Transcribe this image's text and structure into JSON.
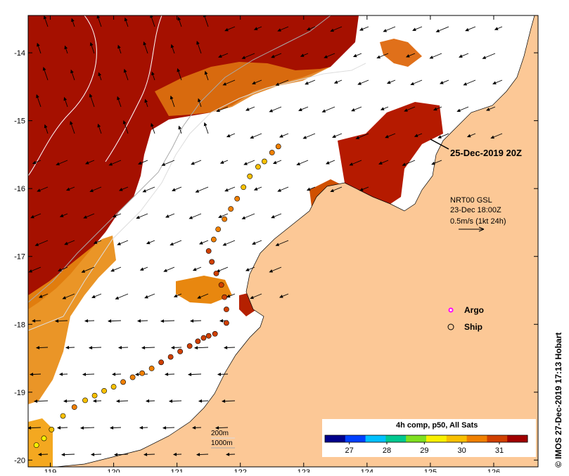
{
  "map": {
    "lon_ticks": [
      "119",
      "120",
      "121",
      "122",
      "123",
      "124",
      "125",
      "126"
    ],
    "lat_ticks": [
      "-14",
      "-15",
      "-16",
      "-17",
      "-18",
      "-19",
      "-20"
    ],
    "lon_range": [
      118.65,
      126.7
    ],
    "lat_range": [
      -13.45,
      -20.1
    ]
  },
  "labels": {
    "date_label": "25-Dec-2019 20Z",
    "current_source": "NRT00 GSL",
    "current_time": "23-Dec 18:00Z",
    "current_scale": "0.5m/s (1kt 24h)",
    "argo_label": "Argo",
    "ship_label": "Ship",
    "depth_200": "200m",
    "depth_1000": "1000m",
    "colorbar_title": "4h comp, p50, All Sats",
    "credit": "© IMOS 27-Dec-2019 17:13 Hobart"
  },
  "colorbar": {
    "ticks": [
      "27",
      "28",
      "29",
      "30",
      "31"
    ],
    "range": [
      26.35,
      31.75
    ],
    "colors": [
      "#00008b",
      "#0040ff",
      "#00c0ff",
      "#00c890",
      "#7fe020",
      "#f8f000",
      "#f8c000",
      "#f08000",
      "#d04000",
      "#a00000"
    ]
  },
  "ship_track": [
    {
      "lon": 118.78,
      "lat": -19.78,
      "sst": 29.5
    },
    {
      "lon": 118.9,
      "lat": -19.68,
      "sst": 29.5
    },
    {
      "lon": 119.02,
      "lat": -19.55,
      "sst": 29.6
    },
    {
      "lon": 119.2,
      "lat": -19.35,
      "sst": 29.9
    },
    {
      "lon": 119.38,
      "lat": -19.22,
      "sst": 30.2
    },
    {
      "lon": 119.55,
      "lat": -19.12,
      "sst": 30.0
    },
    {
      "lon": 119.7,
      "lat": -19.05,
      "sst": 29.9
    },
    {
      "lon": 119.85,
      "lat": -18.98,
      "sst": 30.0
    },
    {
      "lon": 120.0,
      "lat": -18.92,
      "sst": 30.0
    },
    {
      "lon": 120.15,
      "lat": -18.85,
      "sst": 30.2
    },
    {
      "lon": 120.3,
      "lat": -18.78,
      "sst": 30.3
    },
    {
      "lon": 120.45,
      "lat": -18.72,
      "sst": 30.5
    },
    {
      "lon": 120.6,
      "lat": -18.65,
      "sst": 30.6
    },
    {
      "lon": 120.75,
      "lat": -18.56,
      "sst": 30.8
    },
    {
      "lon": 120.9,
      "lat": -18.48,
      "sst": 30.9
    },
    {
      "lon": 121.05,
      "lat": -18.4,
      "sst": 31.0
    },
    {
      "lon": 121.2,
      "lat": -18.32,
      "sst": 31.0
    },
    {
      "lon": 121.33,
      "lat": -18.25,
      "sst": 31.1
    },
    {
      "lon": 121.42,
      "lat": -18.2,
      "sst": 31.1
    },
    {
      "lon": 121.5,
      "lat": -18.17,
      "sst": 31.1
    },
    {
      "lon": 121.6,
      "lat": -18.14,
      "sst": 31.0
    },
    {
      "lon": 121.78,
      "lat": -17.98,
      "sst": 31.0
    },
    {
      "lon": 121.78,
      "lat": -17.78,
      "sst": 31.0
    },
    {
      "lon": 121.75,
      "lat": -17.6,
      "sst": 31.0
    },
    {
      "lon": 121.7,
      "lat": -17.42,
      "sst": 31.0
    },
    {
      "lon": 121.62,
      "lat": -17.25,
      "sst": 30.8
    },
    {
      "lon": 121.55,
      "lat": -17.08,
      "sst": 30.8
    },
    {
      "lon": 121.5,
      "lat": -16.92,
      "sst": 30.7
    },
    {
      "lon": 121.58,
      "lat": -16.75,
      "sst": 30.6
    },
    {
      "lon": 121.65,
      "lat": -16.6,
      "sst": 30.6
    },
    {
      "lon": 121.75,
      "lat": -16.45,
      "sst": 30.5
    },
    {
      "lon": 121.85,
      "lat": -16.3,
      "sst": 30.3
    },
    {
      "lon": 121.95,
      "lat": -16.15,
      "sst": 30.2
    },
    {
      "lon": 122.05,
      "lat": -15.98,
      "sst": 30.0
    },
    {
      "lon": 122.15,
      "lat": -15.82,
      "sst": 29.9
    },
    {
      "lon": 122.28,
      "lat": -15.68,
      "sst": 29.6
    },
    {
      "lon": 122.38,
      "lat": -15.6,
      "sst": 29.8
    },
    {
      "lon": 122.5,
      "lat": -15.47,
      "sst": 30.2
    },
    {
      "lon": 122.6,
      "lat": -15.38,
      "sst": 30.3
    }
  ]
}
